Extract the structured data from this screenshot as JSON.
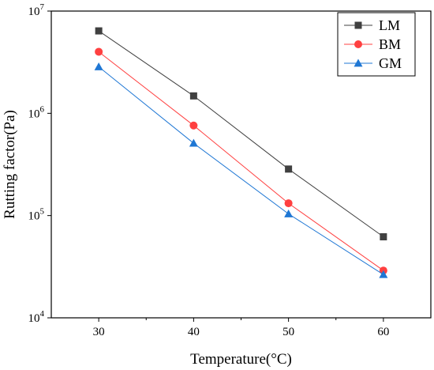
{
  "chart_data": {
    "type": "line",
    "xlabel": "Temperature(°C)",
    "ylabel": "Rutting factor(Pa)",
    "x": [
      30,
      40,
      50,
      60
    ],
    "xlim": [
      25,
      65
    ],
    "xticks": [
      30,
      40,
      50,
      60
    ],
    "y_scale": "log",
    "ylim": [
      10000,
      10000000
    ],
    "yticks": [
      {
        "base": "10",
        "exp": "4"
      },
      {
        "base": "10",
        "exp": "5"
      },
      {
        "base": "10",
        "exp": "6"
      },
      {
        "base": "10",
        "exp": "7"
      }
    ],
    "grid": false,
    "legend_position": "top-right",
    "series": [
      {
        "name": "LM",
        "values": [
          6400000,
          1480000,
          285000,
          62000
        ],
        "color": "#404040",
        "marker": "square"
      },
      {
        "name": "BM",
        "values": [
          4000000,
          760000,
          132000,
          29000
        ],
        "color": "#ff4040",
        "marker": "circle"
      },
      {
        "name": "GM",
        "values": [
          2850000,
          510000,
          104000,
          26500
        ],
        "color": "#1f77d4",
        "marker": "triangle"
      }
    ]
  }
}
